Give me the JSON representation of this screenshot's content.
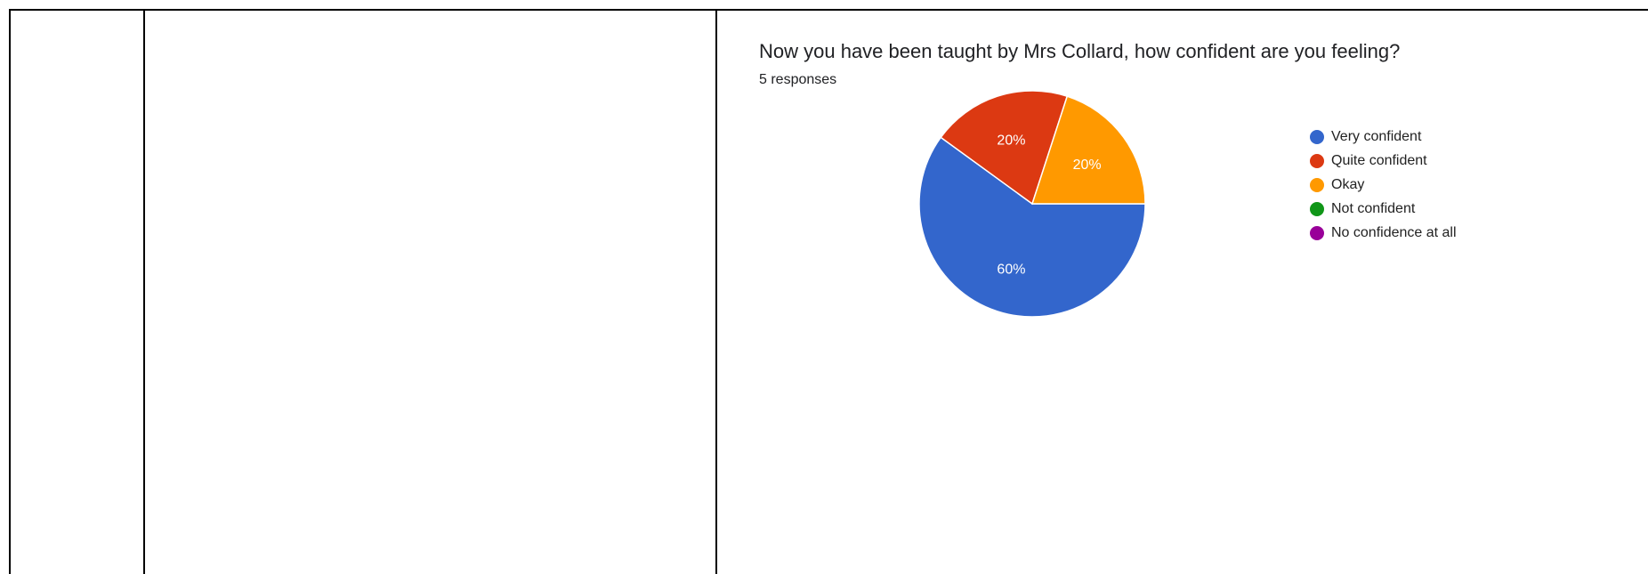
{
  "form": {
    "question": "Now you have been taught by Mrs Collard, how confident are you feeling?",
    "responses_label": "5 responses"
  },
  "chart_data": {
    "type": "pie",
    "title": "Now you have been taught by Mrs Collard, how confident are you feeling?",
    "subtitle": "5 responses",
    "legend_position": "right",
    "slices": [
      {
        "label": "Very confident",
        "value": 60,
        "display": "60%",
        "color": "#3366cc"
      },
      {
        "label": "Quite confident",
        "value": 20,
        "display": "20%",
        "color": "#dc3912"
      },
      {
        "label": "Okay",
        "value": 20,
        "display": "20%",
        "color": "#ff9900"
      },
      {
        "label": "Not confident",
        "value": 0,
        "display": "",
        "color": "#109618"
      },
      {
        "label": "No confidence at all",
        "value": 0,
        "display": "",
        "color": "#990099"
      }
    ]
  }
}
